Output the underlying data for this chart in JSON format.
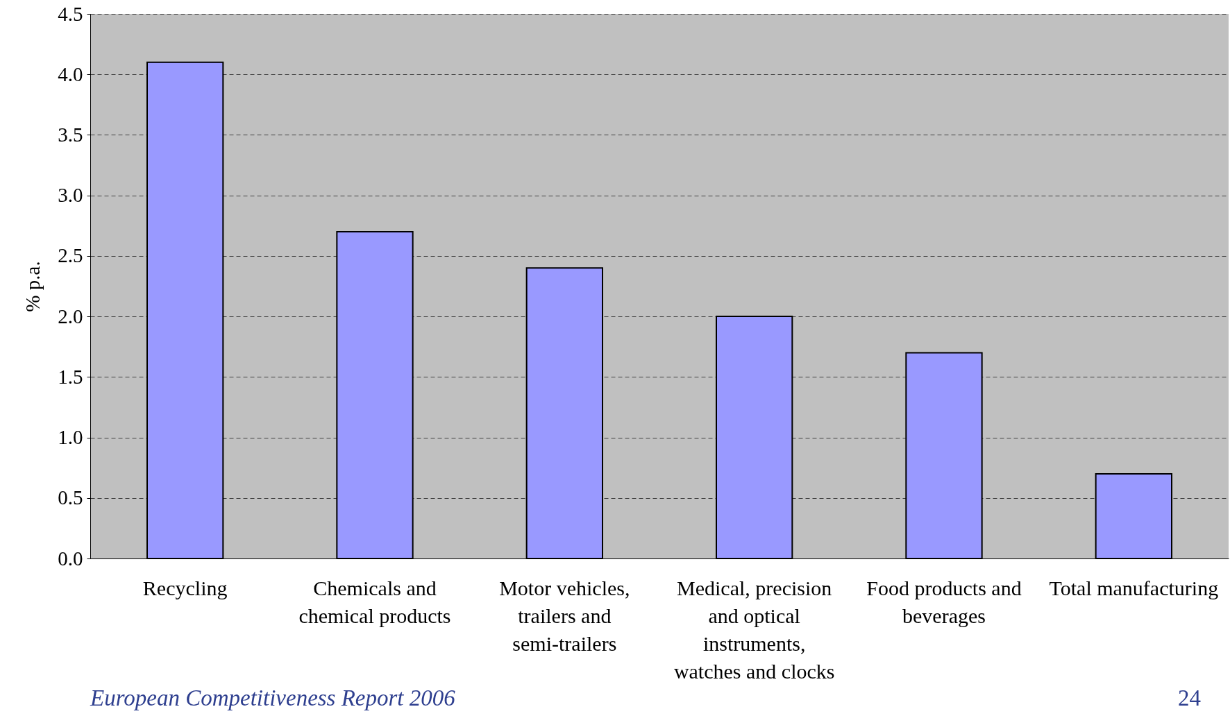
{
  "chart_data": {
    "type": "bar",
    "ylabel": "% p.a.",
    "categories": [
      "Recycling",
      "Chemicals and chemical products",
      "Motor vehicles, trailers and semi-trailers",
      "Medical, precision and optical instruments, watches and clocks",
      "Food products and beverages",
      "Total manufacturing"
    ],
    "values": [
      4.1,
      2.7,
      2.4,
      2.0,
      1.7,
      0.7
    ],
    "color": "#9999ff",
    "ylim": [
      0,
      4.5
    ],
    "yticks": [
      {
        "value": 0,
        "label": "0.0"
      },
      {
        "value": 0.5,
        "label": "0.5"
      },
      {
        "value": 1,
        "label": "1.0"
      },
      {
        "value": 1.5,
        "label": "1.5"
      },
      {
        "value": 2,
        "label": "2.0"
      },
      {
        "value": 2.5,
        "label": "2.5"
      },
      {
        "value": 3,
        "label": "3.0"
      },
      {
        "value": 3.5,
        "label": "3.5"
      },
      {
        "value": 4,
        "label": "4.0"
      },
      {
        "value": 4.5,
        "label": "4.5"
      }
    ],
    "grid": "y",
    "annotations": [
      "European Competitiveness Report 2006",
      "24"
    ]
  }
}
